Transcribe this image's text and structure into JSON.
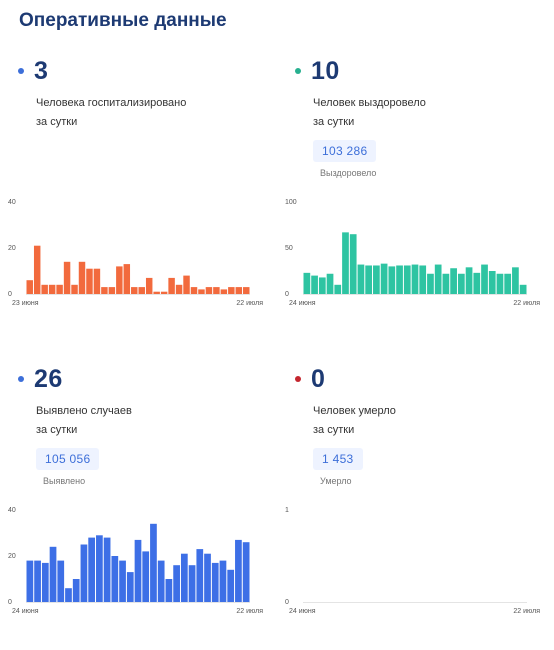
{
  "page": {
    "title": "Оперативные данные"
  },
  "cards": {
    "hospitalized": {
      "value": "3",
      "dot_color": "#3d6fd9",
      "line1": "Человека госпитализировано",
      "line2": "за сутки"
    },
    "recovered": {
      "value": "10",
      "dot_color": "#27b08f",
      "line1": "Человек выздоровело",
      "line2": "за сутки",
      "total_value": "103 286",
      "total_label": "Выздоровело"
    },
    "cases": {
      "value": "26",
      "dot_color": "#3d6fd9",
      "line1": "Выявлено случаев",
      "line2": "за сутки",
      "total_value": "105 056",
      "total_label": "Выявлено"
    },
    "died": {
      "value": "0",
      "dot_color": "#c4262e",
      "line1": "Человек умерло",
      "line2": "за сутки",
      "total_value": "1 453",
      "total_label": "Умерло"
    }
  },
  "chart_data": [
    {
      "type": "bar",
      "color": "#f26a3d",
      "x_start": "23 июня",
      "x_end": "22 июля",
      "yticks": [
        0,
        20,
        40
      ],
      "ylim": [
        0,
        40
      ],
      "values": [
        6,
        21,
        4,
        4,
        4,
        14,
        4,
        14,
        11,
        11,
        3,
        3,
        12,
        13,
        3,
        3,
        7,
        1,
        1,
        7,
        4,
        8,
        3,
        2,
        3,
        3,
        2,
        3,
        3,
        3
      ]
    },
    {
      "type": "bar",
      "color": "#2ec4a2",
      "x_start": "24 июня",
      "x_end": "22 июля",
      "yticks": [
        0,
        50,
        100
      ],
      "ylim": [
        0,
        100
      ],
      "values": [
        23,
        20,
        18,
        22,
        10,
        67,
        65,
        32,
        31,
        31,
        33,
        30,
        31,
        31,
        32,
        31,
        22,
        32,
        22,
        28,
        22,
        29,
        23,
        32,
        25,
        22,
        22,
        29,
        10
      ]
    },
    {
      "type": "bar",
      "color": "#3d6fe6",
      "x_start": "24 июня",
      "x_end": "22 июля",
      "yticks": [
        0,
        20,
        40
      ],
      "ylim": [
        0,
        40
      ],
      "values": [
        18,
        18,
        17,
        24,
        18,
        6,
        10,
        25,
        28,
        29,
        28,
        20,
        18,
        13,
        27,
        22,
        34,
        18,
        10,
        16,
        21,
        16,
        23,
        21,
        17,
        18,
        14,
        27,
        26
      ]
    },
    {
      "type": "bar",
      "color": "#3d6fe6",
      "x_start": "24 июня",
      "x_end": "22 июля",
      "yticks": [
        0,
        1
      ],
      "ylim": [
        0,
        1
      ],
      "values": [
        0,
        0,
        0,
        0,
        0,
        0,
        0,
        0,
        0,
        0,
        0,
        0,
        0,
        0,
        0,
        0,
        0,
        0,
        0,
        0,
        0,
        0,
        0,
        0,
        0,
        0,
        0,
        0,
        0
      ]
    }
  ]
}
